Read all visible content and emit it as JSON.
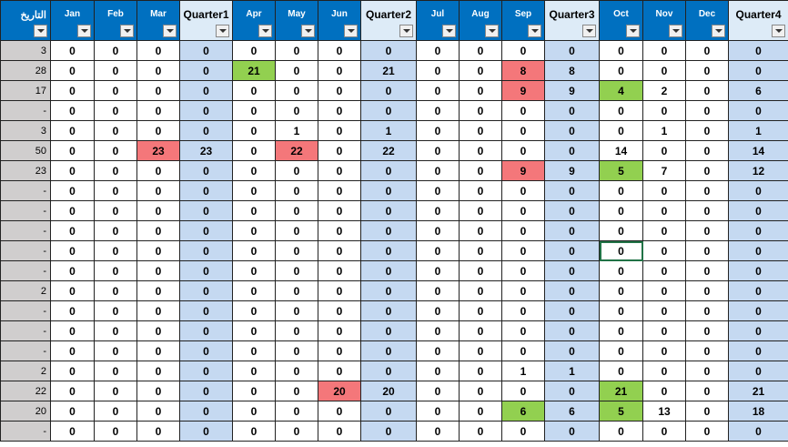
{
  "table": {
    "columns": [
      "التاريخ",
      "Jan",
      "Feb",
      "Mar",
      "Quarter1",
      "Apr",
      "May",
      "Jun",
      "Quarter2",
      "Jul",
      "Aug",
      "Sep",
      "Quarter3",
      "Oct",
      "Nov",
      "Dec",
      "Quarter4"
    ],
    "rows": [
      [
        3,
        0,
        0,
        0,
        0,
        0,
        0,
        0,
        0,
        0,
        0,
        0,
        0,
        0,
        0,
        0,
        0
      ],
      [
        28,
        0,
        0,
        0,
        0,
        21,
        0,
        0,
        21,
        0,
        0,
        8,
        8,
        0,
        0,
        0,
        0
      ],
      [
        17,
        0,
        0,
        0,
        0,
        0,
        0,
        0,
        0,
        0,
        0,
        9,
        9,
        4,
        2,
        0,
        6
      ],
      [
        "-",
        0,
        0,
        0,
        0,
        0,
        0,
        0,
        0,
        0,
        0,
        0,
        0,
        0,
        0,
        0,
        0
      ],
      [
        3,
        0,
        0,
        0,
        0,
        0,
        1,
        0,
        1,
        0,
        0,
        0,
        0,
        0,
        1,
        0,
        1
      ],
      [
        50,
        0,
        0,
        23,
        23,
        0,
        22,
        0,
        22,
        0,
        0,
        0,
        0,
        14,
        0,
        0,
        14
      ],
      [
        23,
        0,
        0,
        0,
        0,
        0,
        0,
        0,
        0,
        0,
        0,
        9,
        9,
        5,
        7,
        0,
        12
      ],
      [
        "-",
        0,
        0,
        0,
        0,
        0,
        0,
        0,
        0,
        0,
        0,
        0,
        0,
        0,
        0,
        0,
        0
      ],
      [
        "-",
        0,
        0,
        0,
        0,
        0,
        0,
        0,
        0,
        0,
        0,
        0,
        0,
        0,
        0,
        0,
        0
      ],
      [
        "-",
        0,
        0,
        0,
        0,
        0,
        0,
        0,
        0,
        0,
        0,
        0,
        0,
        0,
        0,
        0,
        0
      ],
      [
        "-",
        0,
        0,
        0,
        0,
        0,
        0,
        0,
        0,
        0,
        0,
        0,
        0,
        0,
        0,
        0,
        0
      ],
      [
        "-",
        0,
        0,
        0,
        0,
        0,
        0,
        0,
        0,
        0,
        0,
        0,
        0,
        0,
        0,
        0,
        0
      ],
      [
        2,
        0,
        0,
        0,
        0,
        0,
        0,
        0,
        0,
        0,
        0,
        0,
        0,
        0,
        0,
        0,
        0
      ],
      [
        "-",
        0,
        0,
        0,
        0,
        0,
        0,
        0,
        0,
        0,
        0,
        0,
        0,
        0,
        0,
        0,
        0
      ],
      [
        "-",
        0,
        0,
        0,
        0,
        0,
        0,
        0,
        0,
        0,
        0,
        0,
        0,
        0,
        0,
        0,
        0
      ],
      [
        "-",
        0,
        0,
        0,
        0,
        0,
        0,
        0,
        0,
        0,
        0,
        0,
        0,
        0,
        0,
        0,
        0
      ],
      [
        2,
        0,
        0,
        0,
        0,
        0,
        0,
        0,
        0,
        0,
        0,
        1,
        1,
        0,
        0,
        0,
        0
      ],
      [
        22,
        0,
        0,
        0,
        0,
        0,
        0,
        20,
        20,
        0,
        0,
        0,
        0,
        21,
        0,
        0,
        21
      ],
      [
        20,
        0,
        0,
        0,
        0,
        0,
        0,
        0,
        0,
        0,
        0,
        6,
        6,
        5,
        13,
        0,
        18
      ],
      [
        "-",
        0,
        0,
        0,
        0,
        0,
        0,
        0,
        0,
        0,
        0,
        0,
        0,
        0,
        0,
        0,
        0
      ]
    ]
  }
}
